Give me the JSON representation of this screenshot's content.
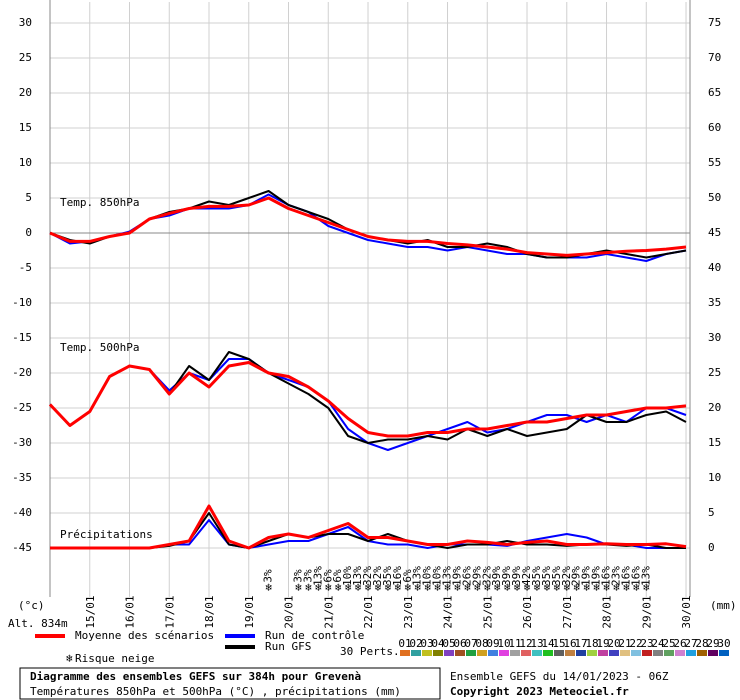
{
  "chart_data": {
    "type": "line",
    "title": "Diagramme des ensembles GEFS sur 384h pour Grevenà",
    "subtitle": "Températures 850hPa et 500hPa (°C) , précipitations (mm)",
    "run_info": "Ensemble GEFS du 14/01/2023 - 06Z",
    "copyright": "Copyright 2023 Meteociel.fr",
    "ylabel": "(°c)",
    "y2label": "(mm)",
    "altitude": "Alt. 834m",
    "panel_labels": [
      "Temp. 850hPa",
      "Temp. 500hPa",
      "Précipitations"
    ],
    "xlim": [
      14,
      30.1
    ],
    "xticks": [
      {
        "value": 15,
        "label": "15/01"
      },
      {
        "value": 16,
        "label": "16/01"
      },
      {
        "value": 17,
        "label": "17/01"
      },
      {
        "value": 18,
        "label": "18/01"
      },
      {
        "value": 19,
        "label": "19/01"
      },
      {
        "value": 20,
        "label": "20/01"
      },
      {
        "value": 21,
        "label": "21/01"
      },
      {
        "value": 22,
        "label": "22/01"
      },
      {
        "value": 23,
        "label": "23/01"
      },
      {
        "value": 24,
        "label": "24/01"
      },
      {
        "value": 25,
        "label": "25/01"
      },
      {
        "value": 26,
        "label": "26/01"
      },
      {
        "value": 27,
        "label": "27/01"
      },
      {
        "value": 28,
        "label": "28/01"
      },
      {
        "value": 29,
        "label": "29/01"
      },
      {
        "value": 30,
        "label": "30/01"
      }
    ],
    "ylim": [
      -52,
      33
    ],
    "yticks": [
      30,
      25,
      20,
      15,
      10,
      5,
      0,
      -5,
      -10,
      -15,
      -20,
      -25,
      -30,
      -35,
      -40,
      -45
    ],
    "y2lim": [
      -7,
      78
    ],
    "y2ticks": [
      75,
      70,
      65,
      60,
      55,
      50,
      45,
      40,
      35,
      30,
      25,
      20,
      15,
      10,
      5,
      0
    ],
    "grid": true,
    "x": [
      14,
      14.5,
      15,
      15.5,
      16,
      16.5,
      17,
      17.5,
      18,
      18.5,
      19,
      19.5,
      20,
      20.5,
      21,
      21.5,
      22,
      22.5,
      23,
      23.5,
      24,
      24.5,
      25,
      25.5,
      26,
      26.5,
      27,
      27.5,
      28,
      28.5,
      29,
      29.5,
      30
    ],
    "series": [
      {
        "name": "Run de contrôle",
        "color": "#0000ff",
        "t850": [
          0,
          -1.5,
          -1.2,
          -0.5,
          0.2,
          2,
          2.5,
          3.5,
          3.5,
          3.5,
          4,
          5.5,
          4,
          3,
          1,
          0,
          -1,
          -1.5,
          -2,
          -2,
          -2.5,
          -2,
          -2.5,
          -3,
          -3,
          -3.5,
          -3.5,
          -3.5,
          -3,
          -3.5,
          -4,
          -3,
          -2.5
        ],
        "t500": [
          -24.5,
          -27.5,
          -25.5,
          -20.5,
          -19,
          -19.5,
          -22.5,
          -20,
          -21,
          -18,
          -18,
          -20,
          -21,
          -22,
          -24,
          -28,
          -30,
          -31,
          -30,
          -29,
          -28,
          -27,
          -28.5,
          -28,
          -27,
          -26,
          -26,
          -27,
          -26,
          -27,
          -25,
          -25,
          -26
        ],
        "precip": [
          0,
          0,
          0,
          0,
          0,
          0,
          0.5,
          0.5,
          4,
          0.5,
          0,
          0.5,
          1,
          1,
          2,
          3,
          1,
          0.5,
          0.5,
          0,
          0.5,
          0.5,
          0.5,
          0.3,
          1,
          1.5,
          2,
          1.5,
          0.5,
          0.5,
          0,
          0,
          0
        ]
      },
      {
        "name": "Run GFS",
        "color": "#000000",
        "t850": [
          0,
          -1,
          -1.5,
          -0.5,
          0,
          2,
          3,
          3.5,
          4.5,
          4,
          5,
          6,
          4,
          3,
          2,
          0.5,
          -0.5,
          -1,
          -1.5,
          -1,
          -2,
          -2,
          -1.5,
          -2,
          -3,
          -3.5,
          -3.5,
          -3,
          -2.5,
          -3,
          -3.5,
          -3,
          -2.5
        ],
        "t500": [
          -24.5,
          -27.5,
          -25.5,
          -20.5,
          -19,
          -19.5,
          -23,
          -19,
          -21,
          -17,
          -18,
          -20,
          -21.5,
          -23,
          -25,
          -29,
          -30,
          -29.5,
          -29.5,
          -29,
          -29.5,
          -28,
          -29,
          -28,
          -29,
          -28.5,
          -28,
          -26,
          -27,
          -27,
          -26,
          -25.5,
          -27
        ],
        "precip": [
          0,
          0,
          0,
          0,
          0,
          0,
          0.3,
          1,
          5,
          0.5,
          0,
          1,
          2,
          1.5,
          2,
          2,
          1,
          2,
          1,
          0.5,
          0,
          0.5,
          0.5,
          1,
          0.5,
          0.5,
          0.3,
          0.5,
          0.5,
          0.3,
          0.5,
          0,
          0
        ]
      },
      {
        "name": "Moyenne des scénarios",
        "color": "#ff0000",
        "t850": [
          0,
          -1.2,
          -1.2,
          -0.5,
          0,
          2,
          2.8,
          3.5,
          3.8,
          3.8,
          4,
          5,
          3.5,
          2.5,
          1.5,
          0.5,
          -0.5,
          -1,
          -1.2,
          -1.2,
          -1.5,
          -1.7,
          -2,
          -2.3,
          -2.8,
          -3,
          -3.2,
          -3,
          -2.8,
          -2.6,
          -2.5,
          -2.3,
          -2
        ],
        "t500": [
          -24.5,
          -27.5,
          -25.5,
          -20.5,
          -19,
          -19.5,
          -23,
          -20,
          -22,
          -19,
          -18.5,
          -20,
          -20.5,
          -22,
          -24,
          -26.5,
          -28.5,
          -29,
          -29,
          -28.5,
          -28.5,
          -28,
          -28,
          -27.5,
          -27,
          -27,
          -26.5,
          -26,
          -26,
          -25.5,
          -25,
          -25,
          -24.7
        ],
        "precip": [
          0,
          0,
          0,
          0,
          0,
          0,
          0.5,
          1,
          6,
          1,
          0,
          1.5,
          2,
          1.5,
          2.5,
          3.5,
          1.5,
          1.5,
          1,
          0.5,
          0.5,
          1,
          0.8,
          0.5,
          0.8,
          1,
          0.5,
          0.5,
          0.6,
          0.5,
          0.5,
          0.6,
          0.2
        ]
      }
    ],
    "snow_risk": {
      "label": "Risque neige",
      "x": [
        19.5,
        20.25,
        20.5,
        20.75,
        21,
        21.25,
        21.5,
        21.75,
        22,
        22.25,
        22.5,
        22.75,
        23,
        23.25,
        23.5,
        23.75,
        24,
        24.25,
        24.5,
        24.75,
        25,
        25.25,
        25.5,
        25.75,
        26,
        26.25,
        26.5,
        26.75,
        27,
        27.25,
        27.5,
        27.75,
        28,
        28.25,
        28.5,
        28.75,
        29
      ],
      "values": [
        3,
        3,
        3,
        13,
        6,
        6,
        10,
        13,
        32,
        32,
        35,
        16,
        6,
        13,
        10,
        10,
        13,
        19,
        26,
        29,
        32,
        39,
        39,
        39,
        42,
        35,
        35,
        35,
        32,
        29,
        19,
        19,
        16,
        23,
        16,
        16,
        13
      ],
      "value_labels": [
        "3%",
        "3%",
        "3%",
        "13%",
        "6%",
        "6%",
        "10%",
        "13%",
        "32%",
        "32%",
        "35%",
        "16%",
        "6%",
        "13%",
        "10%",
        "10%",
        "13%",
        "19%",
        "26%",
        "29%",
        "32%",
        "39%",
        "39%",
        "39%",
        "42%",
        "35%",
        "35%",
        "35%",
        "32%",
        "29%",
        "19%",
        "19%",
        "16%",
        "23%",
        "16%",
        "16%",
        "13%"
      ]
    },
    "perturbations": {
      "label": "30 Perts.",
      "names": [
        "01",
        "02",
        "03",
        "04",
        "05",
        "06",
        "07",
        "08",
        "09",
        "10",
        "11",
        "12",
        "13",
        "14",
        "15",
        "16",
        "17",
        "18",
        "19",
        "20",
        "21",
        "22",
        "23",
        "24",
        "25",
        "26",
        "27",
        "28",
        "29",
        "30"
      ],
      "colors": [
        "#e07020",
        "#30a0a0",
        "#c0c020",
        "#808000",
        "#8040c0",
        "#a05020",
        "#20a040",
        "#d0a020",
        "#4080e0",
        "#e040e0",
        "#a0a0a0",
        "#e06060",
        "#40c0c0",
        "#20c020",
        "#606060",
        "#c08040",
        "#2040a0",
        "#a0d040",
        "#c040a0",
        "#4040c0",
        "#e0c080",
        "#80c0e0",
        "#c02020",
        "#808080",
        "#60a060",
        "#d080d0",
        "#20a0e0",
        "#a06000",
        "#600060",
        "#0060c0"
      ]
    }
  }
}
